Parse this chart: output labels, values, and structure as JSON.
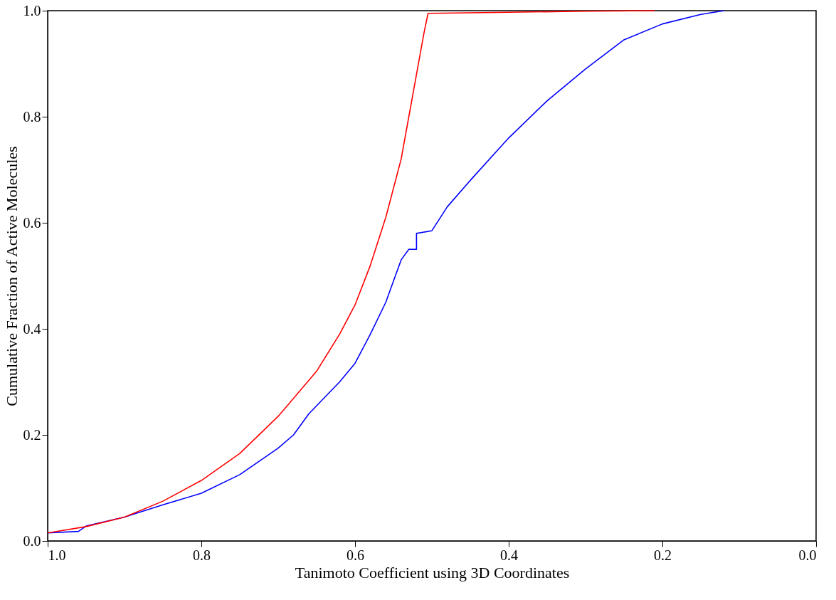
{
  "chart_data": {
    "type": "line",
    "xlabel": "Tanimoto Coefficient using 3D Coordinates",
    "ylabel": "Cumulative Fraction of Active Molecules",
    "xlim": [
      1.0,
      0.0
    ],
    "xticks": [
      {
        "value": 1,
        "label": "1.0"
      },
      0.8,
      0.6,
      0.4,
      0.2,
      {
        "value": 0,
        "label": "0.0"
      }
    ],
    "ylim": [
      0.0,
      1.0
    ],
    "yticks": [
      {
        "value": 0,
        "label": "0.0"
      },
      0.2,
      0.4,
      0.6,
      0.8,
      {
        "value": 1,
        "label": "1.0"
      }
    ],
    "grid": false,
    "legend": false,
    "marker": "none",
    "line_style": "solid",
    "series": [
      {
        "color": "#0000ff",
        "x": [
          1.0,
          0.96,
          0.95,
          0.9,
          0.85,
          0.8,
          0.75,
          0.7,
          0.68,
          0.66,
          0.62,
          0.6,
          0.58,
          0.56,
          0.54,
          0.53,
          0.52,
          0.52,
          0.5,
          0.48,
          0.45,
          0.4,
          0.35,
          0.3,
          0.25,
          0.2,
          0.15,
          0.12
        ],
        "values": [
          0.015,
          0.018,
          0.028,
          0.045,
          0.068,
          0.09,
          0.125,
          0.175,
          0.2,
          0.24,
          0.3,
          0.335,
          0.39,
          0.45,
          0.53,
          0.55,
          0.55,
          0.58,
          0.585,
          0.63,
          0.68,
          0.76,
          0.83,
          0.89,
          0.945,
          0.975,
          0.993,
          1.0
        ]
      },
      {
        "color": "#ff0000",
        "x": [
          1.0,
          0.95,
          0.9,
          0.85,
          0.8,
          0.75,
          0.7,
          0.65,
          0.62,
          0.6,
          0.58,
          0.56,
          0.54,
          0.53,
          0.52,
          0.51,
          0.505,
          0.4,
          0.3,
          0.21
        ],
        "values": [
          0.015,
          0.027,
          0.045,
          0.075,
          0.114,
          0.165,
          0.235,
          0.32,
          0.39,
          0.445,
          0.52,
          0.61,
          0.72,
          0.8,
          0.88,
          0.96,
          0.995,
          0.997,
          0.999,
          1.0
        ]
      }
    ]
  }
}
